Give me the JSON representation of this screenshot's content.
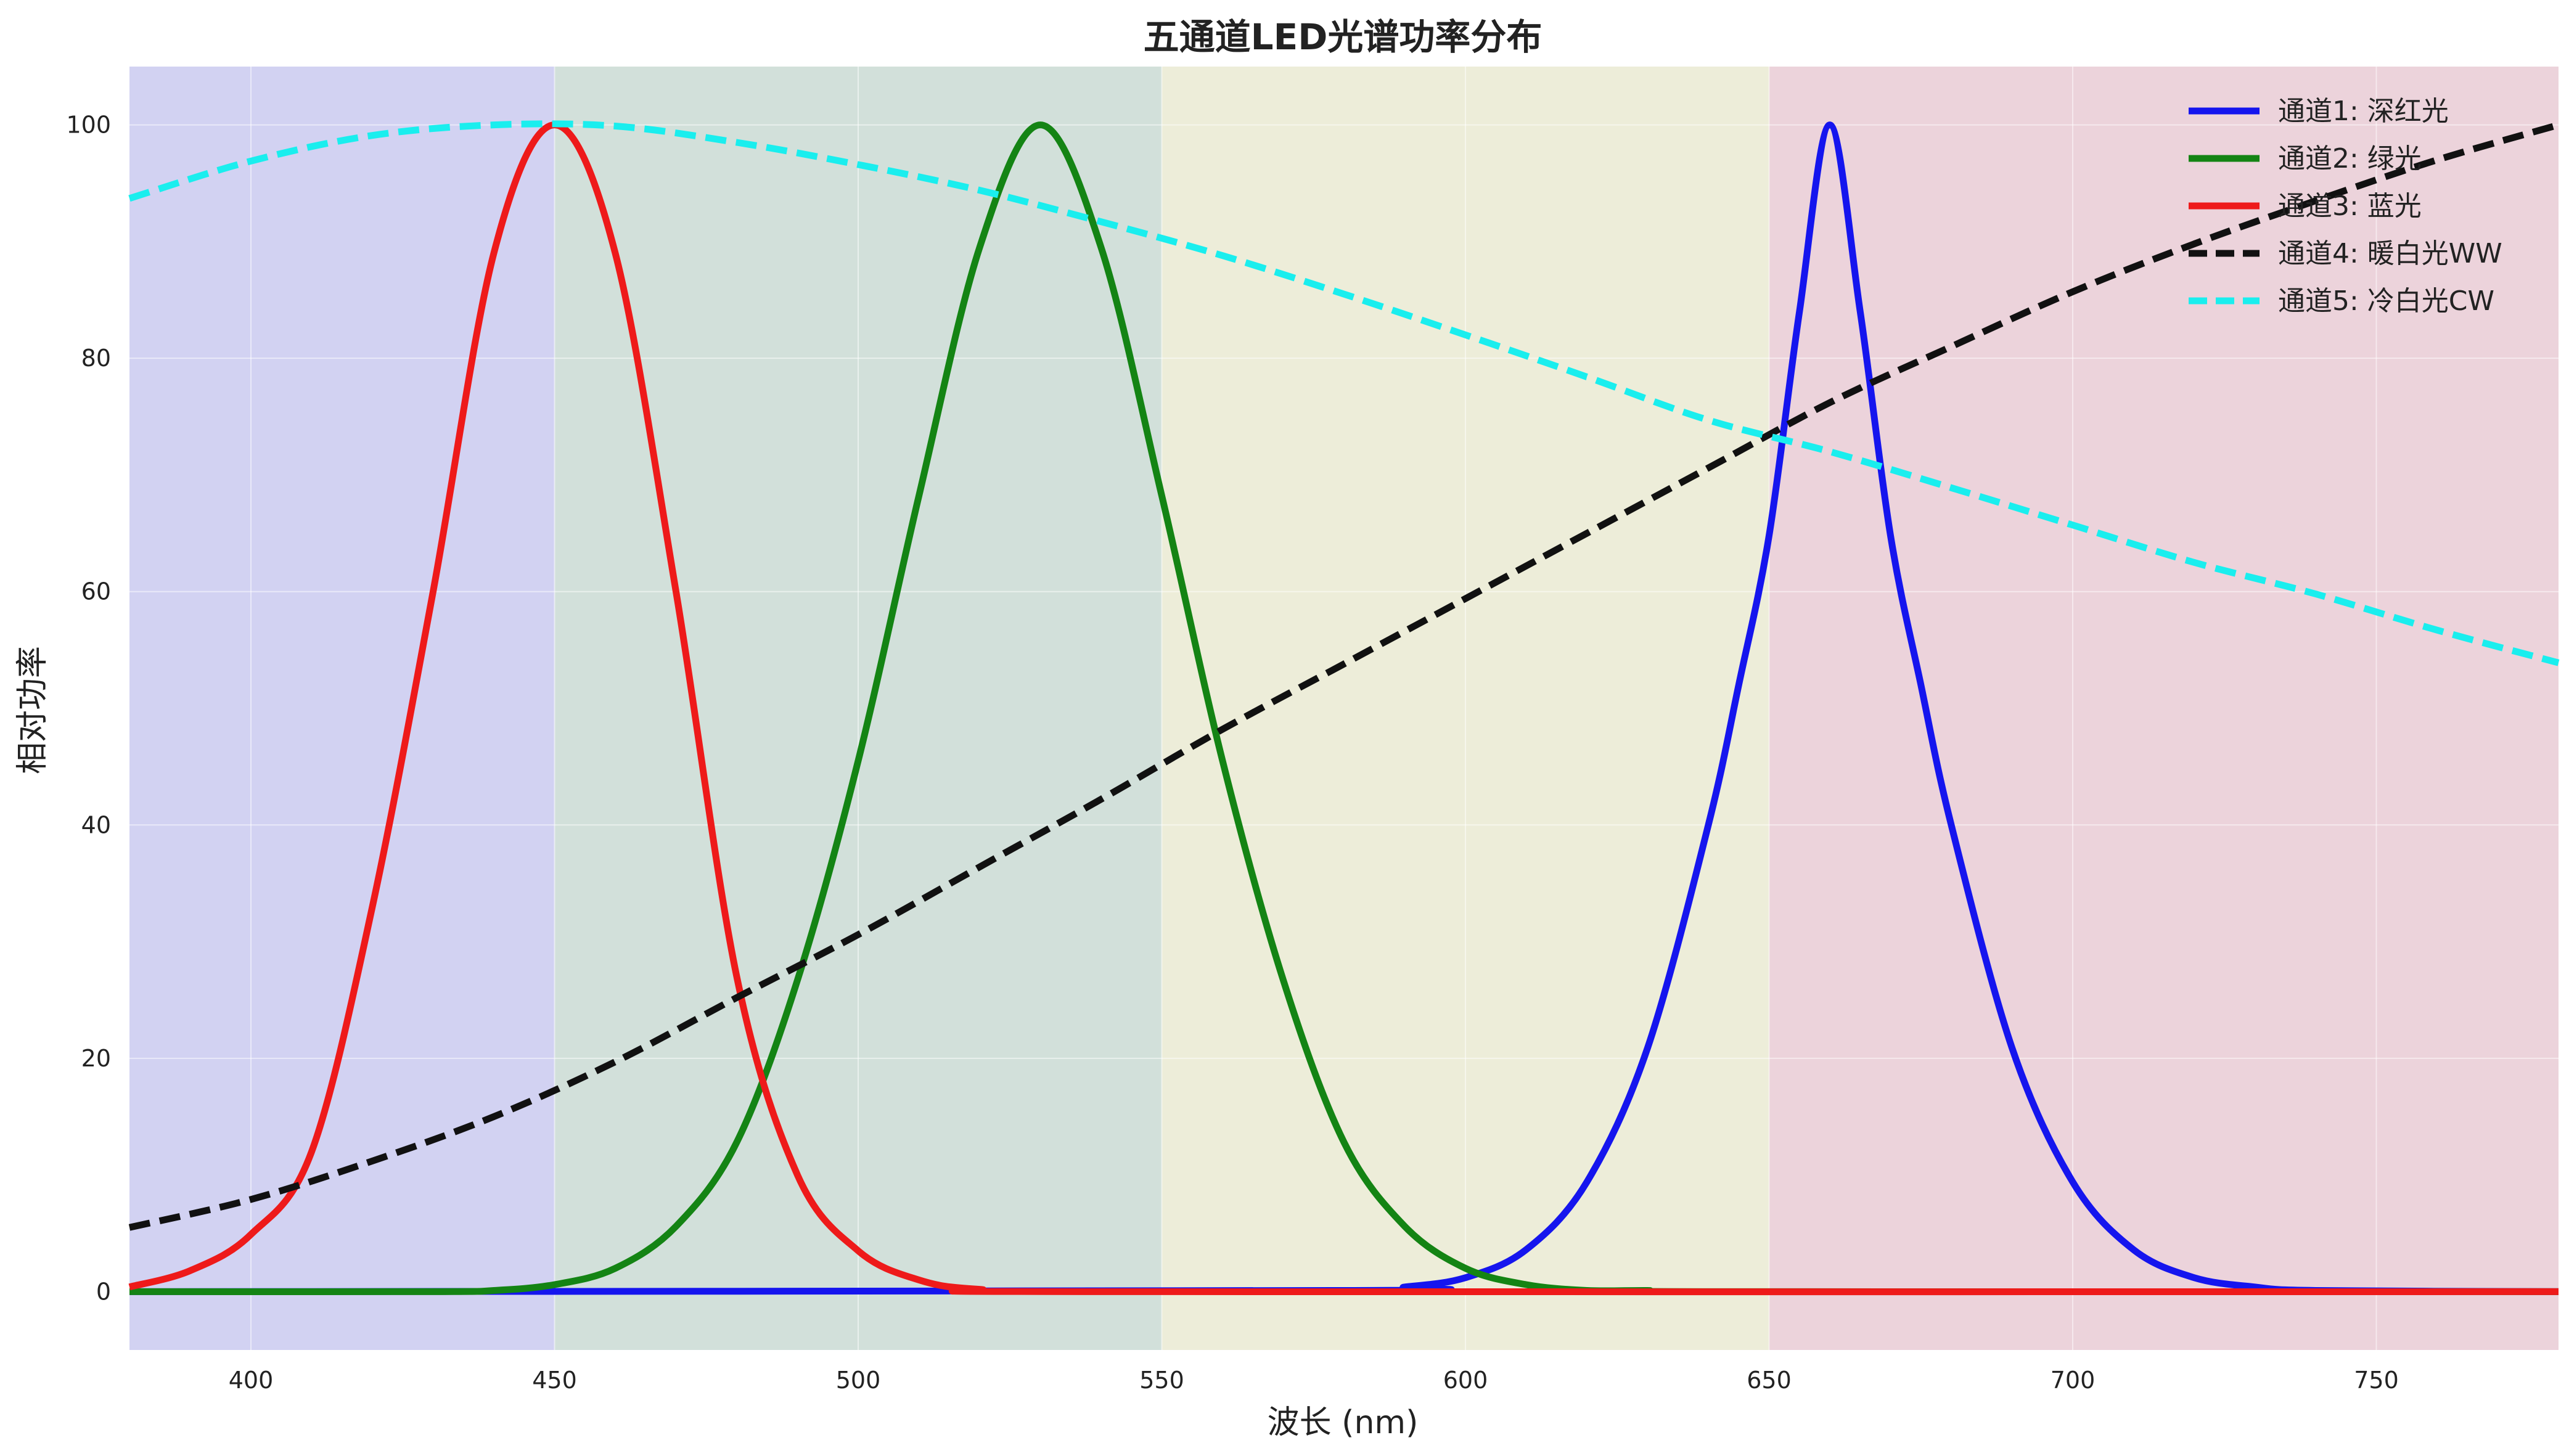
{
  "chart_data": {
    "type": "line",
    "title": "五通道LED光谱功率分布",
    "xlabel": "波长 (nm)",
    "ylabel": "相对功率",
    "xlim": [
      380,
      780
    ],
    "ylim": [
      -5,
      105
    ],
    "xticks": [
      400,
      450,
      500,
      550,
      600,
      650,
      700,
      750
    ],
    "yticks": [
      0,
      20,
      40,
      60,
      80,
      100
    ],
    "grid": true,
    "legend_position": "top-right",
    "bands": [
      {
        "from": 380,
        "to": 450,
        "color": "#d2d2f2"
      },
      {
        "from": 450,
        "to": 550,
        "color": "#d2e0da"
      },
      {
        "from": 550,
        "to": 650,
        "color": "#ededd9"
      },
      {
        "from": 650,
        "to": 780,
        "color": "#ecd3db"
      }
    ],
    "series": [
      {
        "name": "通道1: 深红光",
        "color": "#1515ee",
        "style": "solid",
        "x": [
          380,
          580,
          590,
          600,
          610,
          620,
          630,
          640,
          645,
          650,
          655,
          660,
          665,
          670,
          675,
          680,
          690,
          700,
          710,
          720,
          730,
          740,
          780
        ],
        "y": [
          0,
          0.1,
          0.4,
          1.2,
          3.6,
          9.4,
          20.9,
          40.0,
          52.0,
          64.8,
          84.0,
          100,
          84.0,
          64.8,
          52.0,
          40.0,
          20.9,
          9.4,
          3.6,
          1.2,
          0.4,
          0.1,
          0
        ]
      },
      {
        "name": "通道2: 绿光",
        "color": "#148414",
        "style": "solid",
        "x": [
          380,
          430,
          440,
          450,
          460,
          470,
          480,
          490,
          500,
          510,
          520,
          530,
          540,
          550,
          560,
          570,
          580,
          590,
          600,
          610,
          620,
          630,
          640,
          780
        ],
        "y": [
          0,
          0,
          0.1,
          0.6,
          2.0,
          5.6,
          12.8,
          26.7,
          45.5,
          68.2,
          89.5,
          100,
          89.5,
          68.2,
          45.5,
          26.7,
          12.8,
          5.6,
          2.0,
          0.6,
          0.1,
          0.1,
          0,
          0
        ]
      },
      {
        "name": "通道3: 蓝光",
        "color": "#ee1a1a",
        "style": "solid",
        "x": [
          380,
          390,
          400,
          410,
          420,
          430,
          440,
          450,
          460,
          470,
          480,
          490,
          500,
          510,
          520,
          540,
          780
        ],
        "y": [
          0.4,
          1.8,
          4.9,
          12.0,
          33.0,
          60.0,
          89.0,
          100,
          89.0,
          60.0,
          27.0,
          10.0,
          3.5,
          1.0,
          0.2,
          0,
          0
        ]
      },
      {
        "name": "通道4: 暖白光WW",
        "color": "#111111",
        "style": "dashed",
        "x": [
          380,
          400,
          420,
          440,
          460,
          480,
          500,
          520,
          540,
          560,
          580,
          600,
          620,
          640,
          660,
          680,
          700,
          720,
          740,
          760,
          780
        ],
        "y": [
          5.5,
          7.9,
          11.2,
          15.0,
          19.7,
          25.2,
          30.6,
          36.4,
          42.2,
          48.2,
          53.8,
          59.4,
          65.0,
          70.6,
          76.2,
          81.0,
          85.7,
          89.8,
          93.5,
          97.0,
          100
        ]
      },
      {
        "name": "通道5: 冷白光CW",
        "color": "#1aeeee",
        "style": "dashed",
        "x": [
          380,
          400,
          420,
          440,
          460,
          480,
          500,
          520,
          540,
          560,
          580,
          600,
          620,
          640,
          660,
          680,
          700,
          720,
          740,
          760,
          780
        ],
        "y": [
          93.7,
          96.9,
          99.1,
          100,
          99.9,
          98.5,
          96.6,
          94.4,
          91.7,
          88.8,
          85.5,
          82.0,
          78.4,
          74.7,
          72.0,
          68.9,
          65.7,
          62.5,
          59.8,
          56.7,
          53.9
        ]
      }
    ]
  }
}
